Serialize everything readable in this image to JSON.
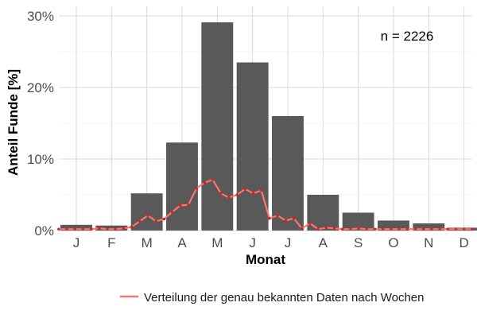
{
  "chart_data": {
    "type": "bar",
    "categories": [
      "J",
      "F",
      "M",
      "A",
      "M",
      "J",
      "J",
      "A",
      "S",
      "O",
      "N",
      "D"
    ],
    "values": [
      0.8,
      0.7,
      5.2,
      12.3,
      29.1,
      23.5,
      16.0,
      5.0,
      2.5,
      1.4,
      1.0,
      0.4
    ],
    "xlabel": "Monat",
    "ylabel": "Anteil Funde [%]",
    "ylim": [
      0,
      30
    ],
    "yticks": [
      0,
      10,
      20,
      30
    ],
    "ytick_labels": [
      "0%",
      "10%",
      "20%",
      "30%"
    ],
    "annotation": "n = 2226",
    "grid": true,
    "bar_color": "#595959",
    "series": [
      {
        "name": "Verteilung der genau bekannten Daten nach Wochen",
        "type": "line",
        "color": "#f8766d",
        "point_color": "#e41a1c",
        "x": [
          0.5,
          0.73,
          0.96,
          1.19,
          1.42,
          1.65,
          1.88,
          2.11,
          2.34,
          2.57,
          2.8,
          3.03,
          3.26,
          3.49,
          3.72,
          3.95,
          4.18,
          4.41,
          4.64,
          4.87,
          5.1,
          5.33,
          5.56,
          5.79,
          6.02,
          6.25,
          6.48,
          6.71,
          6.94,
          7.17,
          7.4,
          7.63,
          7.86,
          8.09,
          8.32,
          8.55,
          8.78,
          9.01,
          9.24,
          9.47,
          9.7,
          9.93,
          10.16,
          10.39,
          10.62,
          10.85,
          11.08,
          11.31,
          11.54,
          11.77,
          12.0,
          12.23
        ],
        "values": [
          0.2,
          0.2,
          0.2,
          0.2,
          0.2,
          0.3,
          0.2,
          0.2,
          0.3,
          0.5,
          1.3,
          2.1,
          1.3,
          1.6,
          2.6,
          3.5,
          3.6,
          5.9,
          6.7,
          7.1,
          5.2,
          4.6,
          5.0,
          5.8,
          5.2,
          5.6,
          1.7,
          2.1,
          1.4,
          1.7,
          0.3,
          1.0,
          0.2,
          0.4,
          0.3,
          0.2,
          0.2,
          0.3,
          0.2,
          0.2,
          0.2,
          0.2,
          0.2,
          0.2,
          0.2,
          0.2,
          0.2,
          0.2,
          0.2,
          0.2,
          0.2,
          0.2
        ]
      }
    ],
    "legend_position": "bottom"
  }
}
